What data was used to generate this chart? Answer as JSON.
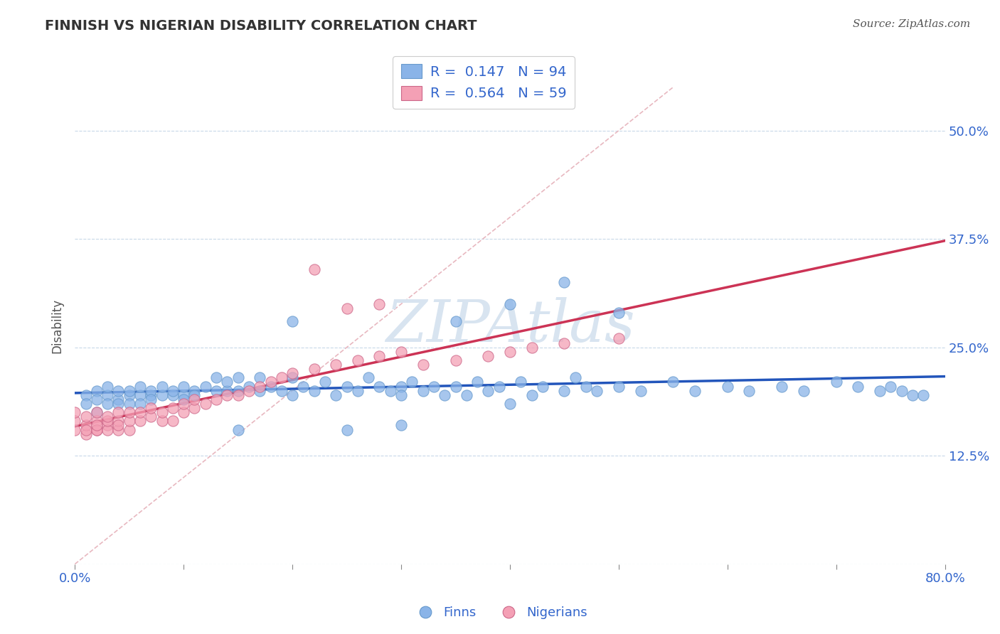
{
  "title": "FINNISH VS NIGERIAN DISABILITY CORRELATION CHART",
  "source": "Source: ZipAtlas.com",
  "ylabel": "Disability",
  "xmin": 0.0,
  "xmax": 0.8,
  "ymin": 0.0,
  "ymax": 0.55,
  "yticks": [
    0.0,
    0.125,
    0.25,
    0.375,
    0.5
  ],
  "xticks": [
    0.0,
    0.1,
    0.2,
    0.3,
    0.4,
    0.5,
    0.6,
    0.7,
    0.8
  ],
  "legend_r_finns": "0.147",
  "legend_n_finns": "94",
  "legend_r_nigerians": "0.564",
  "legend_n_nigerians": "59",
  "color_finns": "#8ab4e8",
  "color_nigerians": "#f4a0b5",
  "color_trendline_finns": "#2255bb",
  "color_trendline_nigerians": "#cc3355",
  "color_diagonal": "#e8b8c0",
  "color_gridline": "#c8d8e8",
  "watermark_text": "ZIPAtlas",
  "watermark_color": "#d8e4f0",
  "finns_x": [
    0.01,
    0.01,
    0.02,
    0.02,
    0.02,
    0.03,
    0.03,
    0.03,
    0.04,
    0.04,
    0.04,
    0.05,
    0.05,
    0.05,
    0.06,
    0.06,
    0.06,
    0.07,
    0.07,
    0.07,
    0.08,
    0.08,
    0.09,
    0.09,
    0.1,
    0.1,
    0.1,
    0.11,
    0.11,
    0.12,
    0.13,
    0.13,
    0.14,
    0.14,
    0.15,
    0.15,
    0.16,
    0.17,
    0.17,
    0.18,
    0.19,
    0.2,
    0.2,
    0.21,
    0.22,
    0.23,
    0.24,
    0.25,
    0.26,
    0.27,
    0.28,
    0.29,
    0.3,
    0.3,
    0.31,
    0.32,
    0.33,
    0.34,
    0.35,
    0.36,
    0.37,
    0.38,
    0.39,
    0.4,
    0.41,
    0.42,
    0.43,
    0.45,
    0.46,
    0.47,
    0.48,
    0.5,
    0.52,
    0.55,
    0.57,
    0.6,
    0.62,
    0.65,
    0.67,
    0.7,
    0.72,
    0.74,
    0.75,
    0.76,
    0.77,
    0.78,
    0.45,
    0.5,
    0.35,
    0.4,
    0.25,
    0.3,
    0.2,
    0.15
  ],
  "finns_y": [
    0.195,
    0.185,
    0.2,
    0.19,
    0.175,
    0.195,
    0.185,
    0.205,
    0.19,
    0.2,
    0.185,
    0.195,
    0.2,
    0.185,
    0.195,
    0.205,
    0.185,
    0.195,
    0.2,
    0.19,
    0.195,
    0.205,
    0.195,
    0.2,
    0.195,
    0.205,
    0.19,
    0.2,
    0.195,
    0.205,
    0.2,
    0.215,
    0.2,
    0.21,
    0.2,
    0.215,
    0.205,
    0.2,
    0.215,
    0.205,
    0.2,
    0.195,
    0.215,
    0.205,
    0.2,
    0.21,
    0.195,
    0.205,
    0.2,
    0.215,
    0.205,
    0.2,
    0.205,
    0.195,
    0.21,
    0.2,
    0.205,
    0.195,
    0.205,
    0.195,
    0.21,
    0.2,
    0.205,
    0.185,
    0.21,
    0.195,
    0.205,
    0.2,
    0.215,
    0.205,
    0.2,
    0.205,
    0.2,
    0.21,
    0.2,
    0.205,
    0.2,
    0.205,
    0.2,
    0.21,
    0.205,
    0.2,
    0.205,
    0.2,
    0.195,
    0.195,
    0.325,
    0.29,
    0.28,
    0.3,
    0.155,
    0.16,
    0.28,
    0.155
  ],
  "nigerians_x": [
    0.0,
    0.0,
    0.0,
    0.01,
    0.01,
    0.01,
    0.01,
    0.02,
    0.02,
    0.02,
    0.02,
    0.02,
    0.03,
    0.03,
    0.03,
    0.03,
    0.04,
    0.04,
    0.04,
    0.04,
    0.05,
    0.05,
    0.05,
    0.06,
    0.06,
    0.07,
    0.07,
    0.08,
    0.08,
    0.09,
    0.09,
    0.1,
    0.1,
    0.11,
    0.11,
    0.12,
    0.13,
    0.14,
    0.15,
    0.16,
    0.17,
    0.18,
    0.19,
    0.2,
    0.22,
    0.24,
    0.26,
    0.28,
    0.3,
    0.22,
    0.25,
    0.28,
    0.32,
    0.35,
    0.38,
    0.4,
    0.42,
    0.45,
    0.5
  ],
  "nigerians_y": [
    0.155,
    0.165,
    0.175,
    0.15,
    0.16,
    0.17,
    0.155,
    0.155,
    0.165,
    0.155,
    0.16,
    0.175,
    0.16,
    0.155,
    0.165,
    0.17,
    0.155,
    0.165,
    0.175,
    0.16,
    0.155,
    0.165,
    0.175,
    0.165,
    0.175,
    0.17,
    0.18,
    0.165,
    0.175,
    0.165,
    0.18,
    0.175,
    0.185,
    0.18,
    0.19,
    0.185,
    0.19,
    0.195,
    0.195,
    0.2,
    0.205,
    0.21,
    0.215,
    0.22,
    0.225,
    0.23,
    0.235,
    0.24,
    0.245,
    0.34,
    0.295,
    0.3,
    0.23,
    0.235,
    0.24,
    0.245,
    0.25,
    0.255,
    0.26
  ]
}
